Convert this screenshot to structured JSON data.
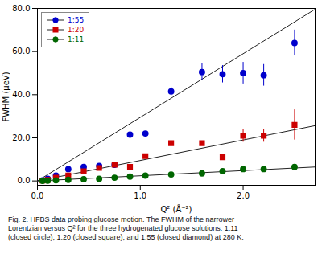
{
  "chart_data": {
    "type": "scatter",
    "xlabel": "Q² (Å⁻²)",
    "ylabel": "FWHM (μeV)",
    "caption": "Fig. 2.  HFBS data probing glucose motion.  The FWHM of the narrower\nLorentzian versus Q² for the three hydrogenated glucose solutions: 1:11\n(closed circle), 1:20 (closed square), and 1:55 (closed diamond) at 280 K.",
    "xlim": [
      0.0,
      2.7
    ],
    "ylim": [
      -2.0,
      80.0
    ],
    "xticks": [
      {
        "value": 0.0,
        "label": "0.0"
      },
      {
        "value": 1.0,
        "label": "1.0"
      },
      {
        "value": 2.0,
        "label": "2.0"
      }
    ],
    "yticks": [
      {
        "value": 0.0,
        "label": "0.0"
      },
      {
        "value": 20.0,
        "label": "20.0"
      },
      {
        "value": 40.0,
        "label": "40.0"
      },
      {
        "value": 60.0,
        "label": "60.0"
      },
      {
        "value": 80.0,
        "label": "80.0"
      }
    ],
    "grid": false,
    "legend": "upper left",
    "series": [
      {
        "name": "1:55",
        "color": "#0000cc",
        "marker": "o",
        "x": [
          0.05,
          0.1,
          0.18,
          0.3,
          0.45,
          0.6,
          0.75,
          0.9,
          1.05,
          1.3,
          1.6,
          1.8,
          2.0,
          2.2,
          2.5
        ],
        "values": [
          0.3,
          1.0,
          2.5,
          5.5,
          6.5,
          7.0,
          7.5,
          21.5,
          22.0,
          41.5,
          50.5,
          49.5,
          50.0,
          49.0,
          64.0
        ],
        "yerr": [
          null,
          null,
          null,
          null,
          null,
          null,
          null,
          null,
          null,
          2.0,
          4.0,
          4.0,
          5.0,
          5.0,
          6.0
        ],
        "fit": {
          "x": [
            0.0,
            2.72
          ],
          "values": [
            0.0,
            80.24
          ],
          "color": "#222222"
        }
      },
      {
        "name": "1:20",
        "color": "#cc0000",
        "marker": "s",
        "x": [
          0.05,
          0.1,
          0.18,
          0.3,
          0.45,
          0.6,
          0.75,
          0.9,
          1.05,
          1.3,
          1.6,
          1.8,
          2.0,
          2.2,
          2.5
        ],
        "values": [
          0.2,
          0.5,
          1.5,
          2.5,
          4.5,
          6.0,
          7.5,
          6.5,
          11.5,
          17.5,
          17.5,
          11.0,
          21.0,
          21.0,
          26.0
        ],
        "yerr": [
          null,
          null,
          null,
          null,
          null,
          null,
          null,
          null,
          null,
          null,
          null,
          null,
          3.0,
          3.0,
          7.0
        ],
        "fit": {
          "x": [
            0.0,
            2.72
          ],
          "values": [
            0.0,
            25.84
          ],
          "color": "#222222"
        }
      },
      {
        "name": "1:11",
        "color": "#006600",
        "marker": "o",
        "x": [
          0.05,
          0.1,
          0.18,
          0.3,
          0.45,
          0.6,
          0.75,
          0.9,
          1.05,
          1.3,
          1.6,
          1.8,
          2.0,
          2.2,
          2.5
        ],
        "values": [
          0.05,
          0.1,
          0.3,
          0.5,
          0.8,
          1.0,
          1.5,
          2.0,
          2.5,
          3.0,
          3.5,
          4.5,
          5.5,
          5.5,
          6.5
        ],
        "yerr": [
          null,
          null,
          null,
          null,
          null,
          null,
          null,
          null,
          null,
          null,
          null,
          null,
          null,
          null,
          null
        ],
        "fit": {
          "x": [
            0.0,
            2.72
          ],
          "values": [
            0.0,
            6.528
          ],
          "color": "#222222"
        }
      }
    ]
  }
}
